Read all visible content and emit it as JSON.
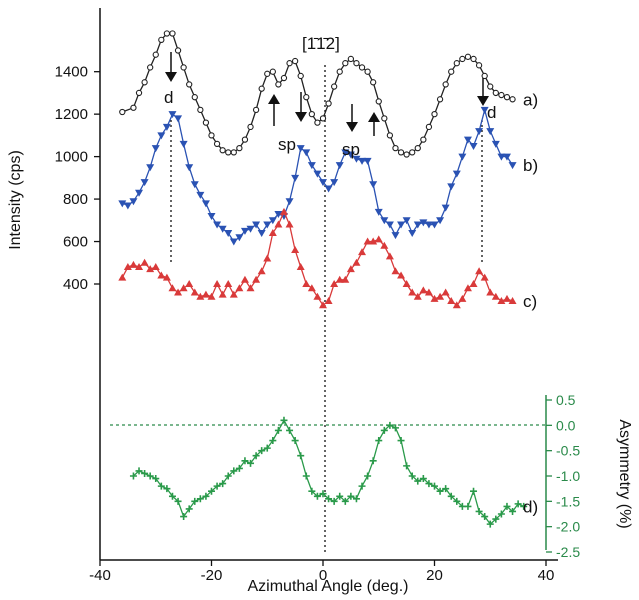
{
  "chart_data": {
    "type": "line",
    "xlabel": "Azimuthal Angle (deg.)",
    "ylabel": "Intensity (cps)",
    "y2label": "Asymmetry (%)",
    "xlim": [
      -40,
      40
    ],
    "x_ticks": [
      -40,
      -20,
      0,
      20,
      40
    ],
    "ylim": [
      -900,
      1700
    ],
    "y_ticks": [
      400,
      600,
      800,
      1000,
      1200,
      1400
    ],
    "y2lim": [
      -2.5,
      0.5
    ],
    "y2_ticks": [
      0.5,
      0.0,
      -0.5,
      -1.0,
      -1.5,
      -2.0,
      -2.5
    ],
    "y2_tick_labels": [
      "0.5",
      "0.0",
      "-0.5",
      "-1.0",
      "-1.5",
      "-2.0",
      "-2.5"
    ],
    "grid": false,
    "direction_label": "[1̄1̄2]",
    "annotations": [
      "d",
      "sp",
      "sp",
      "d"
    ],
    "series": [
      {
        "label": "a)",
        "color": "#222222",
        "marker": "circle-open",
        "axis": "left",
        "x": [
          -36,
          -34,
          -33,
          -32,
          -31,
          -30,
          -29,
          -28,
          -27,
          -26,
          -25,
          -24,
          -23,
          -22,
          -21,
          -20,
          -19,
          -18,
          -17,
          -16,
          -15,
          -14,
          -13,
          -12,
          -11,
          -10,
          -9,
          -8,
          -7,
          -6,
          -5,
          -4,
          -3,
          -2,
          -1,
          0,
          1,
          2,
          3,
          4,
          5,
          6,
          7,
          8,
          9,
          10,
          11,
          12,
          13,
          14,
          15,
          16,
          17,
          18,
          19,
          20,
          21,
          22,
          23,
          24,
          25,
          26,
          27,
          28,
          29,
          30,
          31,
          32,
          33,
          34
        ],
        "y": [
          1210,
          1230,
          1300,
          1350,
          1420,
          1480,
          1550,
          1580,
          1580,
          1500,
          1420,
          1340,
          1280,
          1220,
          1160,
          1100,
          1060,
          1030,
          1020,
          1020,
          1040,
          1080,
          1140,
          1220,
          1320,
          1390,
          1400,
          1340,
          1370,
          1440,
          1450,
          1380,
          1280,
          1200,
          1160,
          1180,
          1250,
          1330,
          1400,
          1440,
          1460,
          1440,
          1420,
          1400,
          1350,
          1260,
          1180,
          1100,
          1040,
          1020,
          1010,
          1020,
          1040,
          1080,
          1140,
          1200,
          1270,
          1340,
          1400,
          1440,
          1460,
          1470,
          1460,
          1430,
          1380,
          1330,
          1300,
          1290,
          1280,
          1270
        ]
      },
      {
        "label": "b)",
        "color": "#2a52b3",
        "marker": "triangle-down",
        "axis": "left",
        "x": [
          -36,
          -35,
          -34,
          -33,
          -32,
          -31,
          -30,
          -29,
          -28,
          -27,
          -26,
          -25,
          -24,
          -23,
          -22,
          -21,
          -20,
          -19,
          -18,
          -17,
          -16,
          -15,
          -14,
          -13,
          -12,
          -11,
          -10,
          -9,
          -8,
          -7,
          -6,
          -5,
          -4,
          -3,
          -2,
          -1,
          0,
          1,
          2,
          3,
          4,
          5,
          6,
          7,
          8,
          9,
          10,
          11,
          12,
          13,
          14,
          15,
          16,
          17,
          18,
          19,
          20,
          21,
          22,
          23,
          24,
          25,
          26,
          27,
          28,
          29,
          30,
          31,
          32,
          33,
          34
        ],
        "y": [
          780,
          770,
          790,
          830,
          880,
          950,
          1040,
          1100,
          1140,
          1200,
          1180,
          1060,
          950,
          870,
          820,
          780,
          720,
          680,
          660,
          640,
          600,
          620,
          650,
          660,
          680,
          640,
          680,
          700,
          730,
          720,
          790,
          900,
          1040,
          1020,
          960,
          920,
          880,
          850,
          880,
          960,
          1020,
          1010,
          990,
          980,
          980,
          870,
          740,
          700,
          680,
          630,
          680,
          700,
          640,
          680,
          690,
          680,
          680,
          700,
          760,
          860,
          920,
          1000,
          1080,
          1050,
          1120,
          1220,
          1120,
          1060,
          1000,
          1000,
          960
        ]
      },
      {
        "label": "c)",
        "color": "#d93a3a",
        "marker": "triangle-up",
        "axis": "left",
        "x": [
          -36,
          -35,
          -34,
          -33,
          -32,
          -31,
          -30,
          -29,
          -28,
          -27,
          -26,
          -25,
          -24,
          -23,
          -22,
          -21,
          -20,
          -19,
          -18,
          -17,
          -16,
          -15,
          -14,
          -13,
          -12,
          -11,
          -10,
          -9,
          -8,
          -7,
          -6,
          -5,
          -4,
          -3,
          -2,
          -1,
          0,
          1,
          2,
          3,
          4,
          5,
          6,
          7,
          8,
          9,
          10,
          11,
          12,
          13,
          14,
          15,
          16,
          17,
          18,
          19,
          20,
          21,
          22,
          23,
          24,
          25,
          26,
          27,
          28,
          29,
          30,
          31,
          32,
          33,
          34
        ],
        "y": [
          430,
          480,
          490,
          480,
          500,
          470,
          480,
          440,
          430,
          380,
          360,
          380,
          400,
          360,
          340,
          350,
          340,
          400,
          350,
          400,
          350,
          380,
          420,
          380,
          420,
          460,
          520,
          640,
          680,
          740,
          680,
          560,
          480,
          400,
          380,
          340,
          300,
          320,
          400,
          420,
          420,
          470,
          500,
          550,
          600,
          600,
          610,
          580,
          530,
          460,
          440,
          400,
          360,
          340,
          370,
          360,
          330,
          340,
          360,
          320,
          300,
          330,
          380,
          400,
          460,
          430,
          360,
          340,
          320,
          330,
          320
        ]
      },
      {
        "label": "d)",
        "color": "#2a9a4a",
        "marker": "cross",
        "axis": "right",
        "x": [
          -34,
          -33,
          -32,
          -31,
          -30,
          -29,
          -28,
          -27,
          -26,
          -25,
          -24,
          -23,
          -22,
          -21,
          -20,
          -19,
          -18,
          -17,
          -16,
          -15,
          -14,
          -13,
          -12,
          -11,
          -10,
          -9,
          -8,
          -7,
          -6,
          -5,
          -4,
          -3,
          -2,
          -1,
          0,
          1,
          2,
          3,
          4,
          5,
          6,
          7,
          8,
          9,
          10,
          11,
          12,
          13,
          14,
          15,
          16,
          17,
          18,
          19,
          20,
          21,
          22,
          23,
          24,
          25,
          26,
          27,
          28,
          29,
          30,
          31,
          32,
          33,
          34,
          35,
          36
        ],
        "y": [
          -1.0,
          -0.9,
          -0.95,
          -1.0,
          -1.05,
          -1.2,
          -1.25,
          -1.4,
          -1.5,
          -1.8,
          -1.65,
          -1.5,
          -1.45,
          -1.4,
          -1.3,
          -1.2,
          -1.15,
          -1.0,
          -0.9,
          -0.85,
          -0.7,
          -0.75,
          -0.6,
          -0.5,
          -0.45,
          -0.3,
          -0.1,
          0.1,
          -0.1,
          -0.3,
          -0.6,
          -1.0,
          -1.3,
          -1.4,
          -1.35,
          -1.45,
          -1.5,
          -1.4,
          -1.5,
          -1.4,
          -1.45,
          -1.2,
          -1.0,
          -0.7,
          -0.3,
          -0.1,
          0.0,
          -0.05,
          -0.3,
          -0.8,
          -1.0,
          -1.1,
          -1.05,
          -1.15,
          -1.2,
          -1.3,
          -1.25,
          -1.4,
          -1.5,
          -1.6,
          -1.6,
          -1.3,
          -1.7,
          -1.8,
          -1.95,
          -1.85,
          -1.75,
          -1.6,
          -1.7,
          -1.55,
          -1.6
        ]
      }
    ]
  }
}
